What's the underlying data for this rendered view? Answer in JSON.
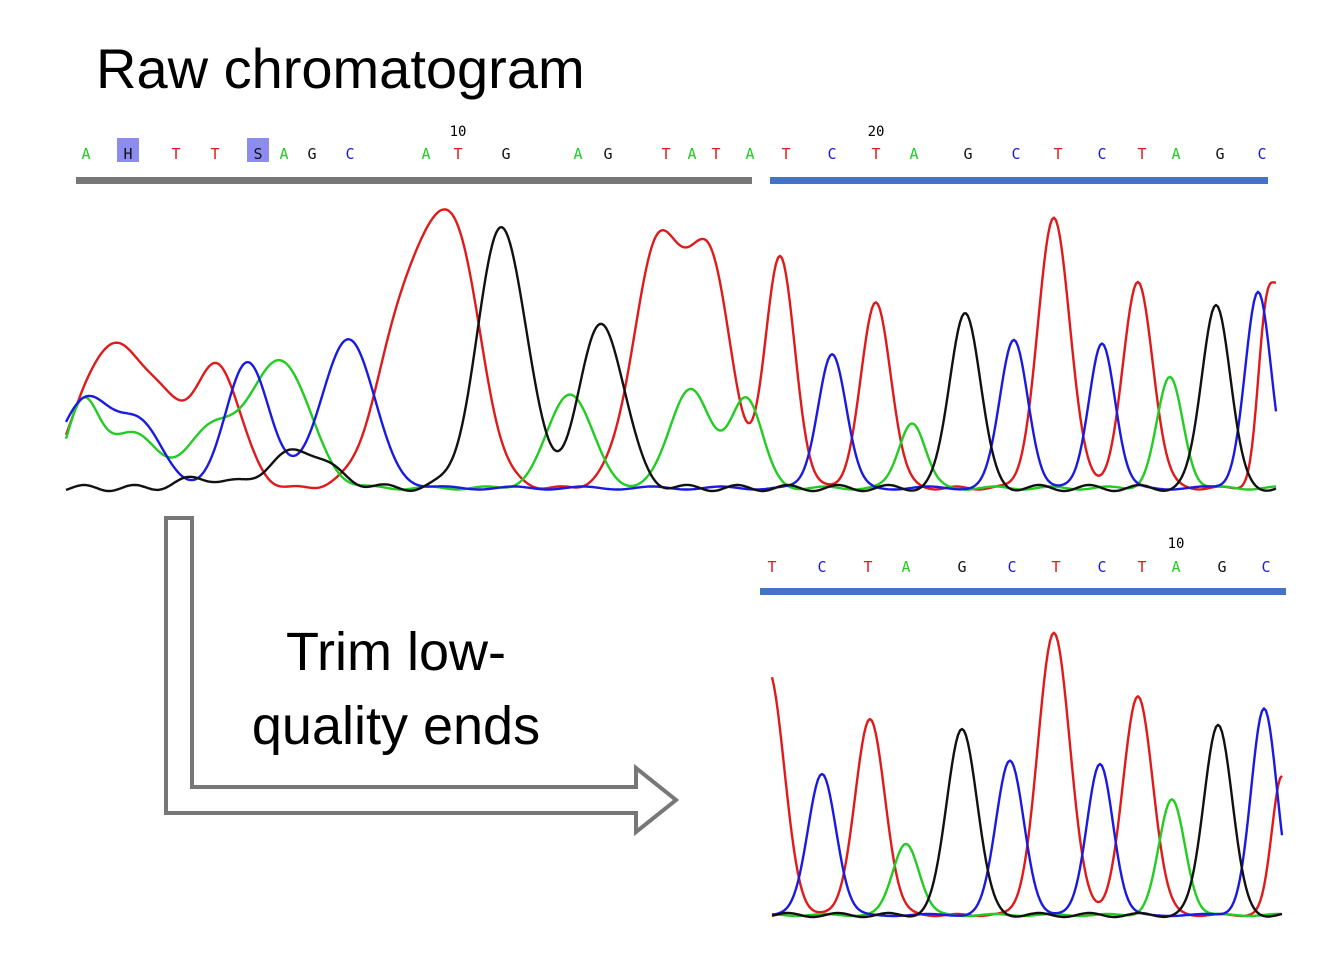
{
  "title": "Raw chromatogram",
  "caption": [
    "Trim low-",
    "quality ends"
  ],
  "colors": {
    "A": "#22cc22",
    "C": "#1a1ae0",
    "G": "#111111",
    "T": "#e01a1a",
    "ambiguous_highlight": "#8c8cf0",
    "low_quality_bar": "#777777",
    "high_quality_bar": "#4472c4",
    "arrow": "#777777"
  },
  "raw": {
    "bases": [
      "A",
      "H",
      "T",
      "T",
      "S",
      "A",
      "G",
      "C",
      "A",
      "T",
      "G",
      "A",
      "G",
      "T",
      "A",
      "T",
      "A",
      "T",
      "C",
      "T",
      "A",
      "G",
      "C",
      "T",
      "C",
      "T",
      "A",
      "G",
      "C"
    ],
    "highlighted": [
      1,
      4
    ],
    "position_labels": [
      {
        "text": "10",
        "index": 9
      },
      {
        "text": "20",
        "index": 19
      }
    ],
    "segments": [
      {
        "name": "low-quality",
        "from": 0,
        "to": 16
      },
      {
        "name": "high-quality",
        "from": 17,
        "to": 28
      }
    ]
  },
  "trimmed": {
    "bases": [
      "T",
      "C",
      "T",
      "A",
      "G",
      "C",
      "T",
      "C",
      "T",
      "A",
      "G",
      "C"
    ],
    "position_labels": [
      {
        "text": "10",
        "index": 9
      }
    ]
  }
}
